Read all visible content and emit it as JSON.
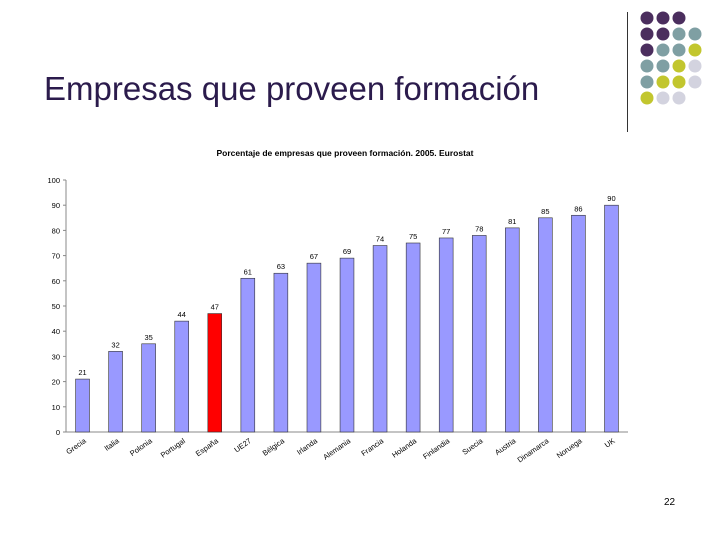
{
  "slide": {
    "title": "Empresas que proveen formación",
    "page_number": "22"
  },
  "decor": {
    "dot_grid": [
      [
        "#4b2e5e",
        "#4b2e5e",
        "#4b2e5e",
        null
      ],
      [
        "#4b2e5e",
        "#4b2e5e",
        "#7f9fa3",
        "#7f9fa3"
      ],
      [
        "#4b2e5e",
        "#7f9fa3",
        "#7f9fa3",
        "#c2c62e"
      ],
      [
        "#7f9fa3",
        "#7f9fa3",
        "#c2c62e",
        "#d3d3df"
      ],
      [
        "#7f9fa3",
        "#c2c62e",
        "#c2c62e",
        "#d3d3df"
      ],
      [
        "#c2c62e",
        "#d3d3df",
        "#d3d3df",
        null
      ]
    ]
  },
  "chart_data": {
    "type": "bar",
    "title": "Porcentaje de empresas que proveen formación. 2005. Eurostat",
    "categories": [
      "Grecia",
      "Italia",
      "Polonia",
      "Portugal",
      "España",
      "UE27",
      "Bélgica",
      "Irlanda",
      "Alemania",
      "Francia",
      "Holanda",
      "Finlandia",
      "Suecia",
      "Austria",
      "Dinamarca",
      "Noruega",
      "UK"
    ],
    "values": [
      21,
      32,
      35,
      44,
      47,
      61,
      63,
      67,
      69,
      74,
      75,
      77,
      78,
      81,
      85,
      86,
      90
    ],
    "highlight_index": 4,
    "bar_color": "#9999ff",
    "highlight_color": "#ff0000",
    "ylim": [
      0,
      100
    ],
    "yticks": [
      0,
      10,
      20,
      30,
      40,
      50,
      60,
      70,
      80,
      90,
      100
    ],
    "grid": false
  }
}
